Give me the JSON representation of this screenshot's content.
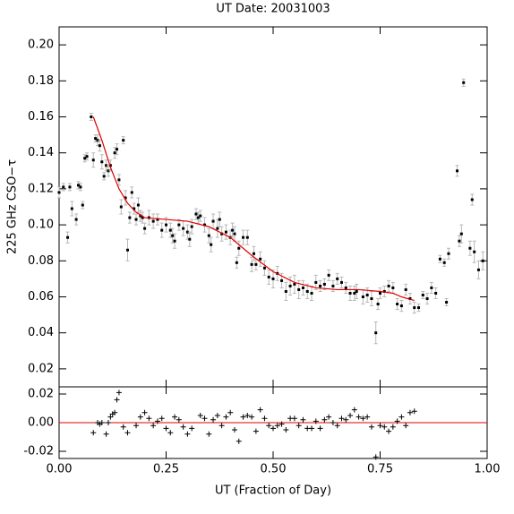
{
  "chart_data": [
    {
      "type": "scatter",
      "marker": "dot",
      "title": "UT Date: 20031003",
      "ylabel": "225 GHz CSO−τ",
      "x": [
        0.0,
        0.01,
        0.02,
        0.025,
        0.03,
        0.04,
        0.045,
        0.05,
        0.055,
        0.06,
        0.065,
        0.075,
        0.08,
        0.085,
        0.09,
        0.095,
        0.1,
        0.105,
        0.11,
        0.115,
        0.12,
        0.13,
        0.135,
        0.14,
        0.145,
        0.15,
        0.155,
        0.16,
        0.165,
        0.17,
        0.175,
        0.18,
        0.185,
        0.19,
        0.195,
        0.2,
        0.21,
        0.22,
        0.23,
        0.24,
        0.25,
        0.26,
        0.265,
        0.27,
        0.28,
        0.29,
        0.3,
        0.305,
        0.31,
        0.32,
        0.325,
        0.33,
        0.34,
        0.35,
        0.355,
        0.36,
        0.37,
        0.375,
        0.38,
        0.39,
        0.4,
        0.405,
        0.41,
        0.415,
        0.42,
        0.43,
        0.44,
        0.45,
        0.455,
        0.46,
        0.47,
        0.48,
        0.49,
        0.5,
        0.51,
        0.52,
        0.53,
        0.54,
        0.55,
        0.56,
        0.57,
        0.58,
        0.59,
        0.6,
        0.61,
        0.62,
        0.63,
        0.64,
        0.65,
        0.66,
        0.67,
        0.68,
        0.69,
        0.695,
        0.74,
        0.71,
        0.72,
        0.73,
        0.745,
        0.75,
        0.76,
        0.77,
        0.78,
        0.79,
        0.8,
        0.81,
        0.82,
        0.83,
        0.84,
        0.85,
        0.86,
        0.87,
        0.88,
        0.89,
        0.9,
        0.905,
        0.91,
        0.93,
        0.935,
        0.945,
        0.94,
        0.965,
        0.96,
        0.97,
        0.98,
        0.99
      ],
      "values": [
        0.118,
        0.121,
        0.093,
        0.121,
        0.109,
        0.103,
        0.122,
        0.121,
        0.111,
        0.137,
        0.138,
        0.16,
        0.136,
        0.148,
        0.147,
        0.144,
        0.135,
        0.127,
        0.133,
        0.13,
        0.133,
        0.14,
        0.142,
        0.125,
        0.11,
        0.147,
        0.115,
        0.086,
        0.104,
        0.118,
        0.109,
        0.103,
        0.111,
        0.105,
        0.104,
        0.098,
        0.104,
        0.102,
        0.103,
        0.097,
        0.1,
        0.097,
        0.094,
        0.091,
        0.1,
        0.098,
        0.096,
        0.092,
        0.099,
        0.106,
        0.104,
        0.105,
        0.1,
        0.094,
        0.089,
        0.102,
        0.098,
        0.103,
        0.095,
        0.096,
        0.093,
        0.097,
        0.095,
        0.079,
        0.087,
        0.093,
        0.093,
        0.078,
        0.084,
        0.078,
        0.081,
        0.076,
        0.071,
        0.07,
        0.073,
        0.069,
        0.063,
        0.066,
        0.067,
        0.064,
        0.065,
        0.063,
        0.062,
        0.068,
        0.066,
        0.067,
        0.072,
        0.066,
        0.07,
        0.068,
        0.065,
        0.062,
        0.062,
        0.063,
        0.04,
        0.06,
        0.061,
        0.059,
        0.056,
        0.062,
        0.063,
        0.066,
        0.065,
        0.056,
        0.055,
        0.064,
        0.059,
        0.054,
        0.054,
        0.061,
        0.059,
        0.065,
        0.062,
        0.081,
        0.079,
        0.057,
        0.084,
        0.13,
        0.091,
        0.179,
        0.095,
        0.114,
        0.087,
        0.085,
        0.075,
        0.08
      ],
      "errors": [
        0.003,
        0.002,
        0.003,
        0.002,
        0.004,
        0.003,
        0.002,
        0.002,
        0.002,
        0.002,
        0.002,
        0.002,
        0.004,
        0.002,
        0.003,
        0.003,
        0.004,
        0.002,
        0.003,
        0.003,
        0.003,
        0.003,
        0.003,
        0.003,
        0.004,
        0.002,
        0.004,
        0.006,
        0.003,
        0.003,
        0.003,
        0.003,
        0.004,
        0.003,
        0.003,
        0.003,
        0.004,
        0.004,
        0.003,
        0.004,
        0.004,
        0.004,
        0.004,
        0.004,
        0.003,
        0.004,
        0.004,
        0.004,
        0.004,
        0.003,
        0.003,
        0.003,
        0.004,
        0.004,
        0.004,
        0.004,
        0.005,
        0.004,
        0.004,
        0.004,
        0.004,
        0.004,
        0.004,
        0.003,
        0.004,
        0.004,
        0.004,
        0.004,
        0.004,
        0.003,
        0.004,
        0.004,
        0.004,
        0.005,
        0.004,
        0.004,
        0.005,
        0.005,
        0.005,
        0.005,
        0.004,
        0.004,
        0.004,
        0.004,
        0.003,
        0.003,
        0.003,
        0.003,
        0.003,
        0.003,
        0.003,
        0.004,
        0.004,
        0.004,
        0.006,
        0.004,
        0.004,
        0.004,
        0.003,
        0.003,
        0.003,
        0.003,
        0.003,
        0.003,
        0.003,
        0.003,
        0.003,
        0.003,
        0.002,
        0.002,
        0.003,
        0.003,
        0.003,
        0.002,
        0.002,
        0.002,
        0.003,
        0.003,
        0.003,
        0.002,
        0.005,
        0.003,
        0.004,
        0.006,
        0.005,
        0.005
      ],
      "color": "#000000",
      "error_color": "#b8b8b8",
      "fit_x": [
        0.08,
        0.1,
        0.12,
        0.14,
        0.16,
        0.18,
        0.2,
        0.25,
        0.3,
        0.35,
        0.4,
        0.45,
        0.5,
        0.55,
        0.6,
        0.65,
        0.7,
        0.75,
        0.78,
        0.8,
        0.83
      ],
      "fit_values": [
        0.16,
        0.147,
        0.132,
        0.12,
        0.112,
        0.107,
        0.104,
        0.103,
        0.102,
        0.099,
        0.093,
        0.083,
        0.074,
        0.068,
        0.065,
        0.064,
        0.064,
        0.063,
        0.062,
        0.06,
        0.058
      ],
      "fit_color": "#e00000",
      "xlim": [
        0,
        1
      ],
      "ylim": [
        0.01,
        0.21
      ],
      "yticks": [
        0.02,
        0.04,
        0.06,
        0.08,
        {
          "value": 0.1,
          "label": "0.10"
        },
        0.12,
        0.14,
        0.16,
        0.18,
        {
          "value": 0.2,
          "label": "0.20"
        }
      ]
    },
    {
      "type": "scatter",
      "marker": "plus",
      "xlabel": "UT (Fraction of Day)",
      "x": [
        0.08,
        0.09,
        0.095,
        0.1,
        0.11,
        0.115,
        0.12,
        0.125,
        0.13,
        0.135,
        0.14,
        0.15,
        0.16,
        0.18,
        0.19,
        0.2,
        0.21,
        0.22,
        0.23,
        0.24,
        0.25,
        0.26,
        0.27,
        0.28,
        0.29,
        0.3,
        0.31,
        0.33,
        0.34,
        0.35,
        0.36,
        0.37,
        0.38,
        0.39,
        0.4,
        0.41,
        0.42,
        0.43,
        0.44,
        0.45,
        0.46,
        0.47,
        0.48,
        0.49,
        0.5,
        0.51,
        0.52,
        0.53,
        0.54,
        0.55,
        0.56,
        0.57,
        0.58,
        0.59,
        0.6,
        0.61,
        0.62,
        0.63,
        0.64,
        0.65,
        0.66,
        0.67,
        0.68,
        0.69,
        0.7,
        0.71,
        0.72,
        0.73,
        0.74,
        0.75,
        0.76,
        0.77,
        0.78,
        0.79,
        0.8,
        0.81,
        0.82,
        0.83
      ],
      "values": [
        -0.007,
        0.0,
        -0.001,
        0.0,
        -0.008,
        0.0,
        0.004,
        0.006,
        0.007,
        0.016,
        0.021,
        -0.003,
        -0.007,
        -0.002,
        0.004,
        0.007,
        0.003,
        -0.002,
        0.001,
        0.003,
        -0.004,
        -0.007,
        0.004,
        0.002,
        -0.003,
        -0.008,
        -0.004,
        0.005,
        0.003,
        -0.008,
        0.002,
        0.005,
        -0.002,
        0.004,
        0.007,
        -0.005,
        -0.013,
        0.004,
        0.005,
        0.004,
        -0.006,
        0.009,
        0.003,
        -0.002,
        -0.004,
        -0.002,
        -0.001,
        -0.005,
        0.003,
        0.003,
        -0.002,
        0.002,
        -0.004,
        -0.004,
        0.001,
        -0.004,
        0.002,
        0.004,
        0.0,
        -0.002,
        0.003,
        0.002,
        0.005,
        0.009,
        0.004,
        0.003,
        0.004,
        -0.003,
        -0.024,
        -0.002,
        -0.003,
        -0.006,
        -0.003,
        0.001,
        0.004,
        -0.002,
        0.007,
        0.008
      ],
      "color": "#000000",
      "reference_line": 0,
      "reference_color": "#e00000",
      "xlim": [
        0,
        1
      ],
      "ylim": [
        -0.025,
        0.025
      ],
      "xticks": [
        {
          "value": 0,
          "label": "0.00"
        },
        0.25,
        {
          "value": 0.5,
          "label": "0.50"
        },
        0.75,
        {
          "value": 1,
          "label": "1.00"
        }
      ],
      "yticks": [
        -0.02,
        {
          "value": 0,
          "label": "0.00"
        },
        0.02
      ]
    }
  ]
}
